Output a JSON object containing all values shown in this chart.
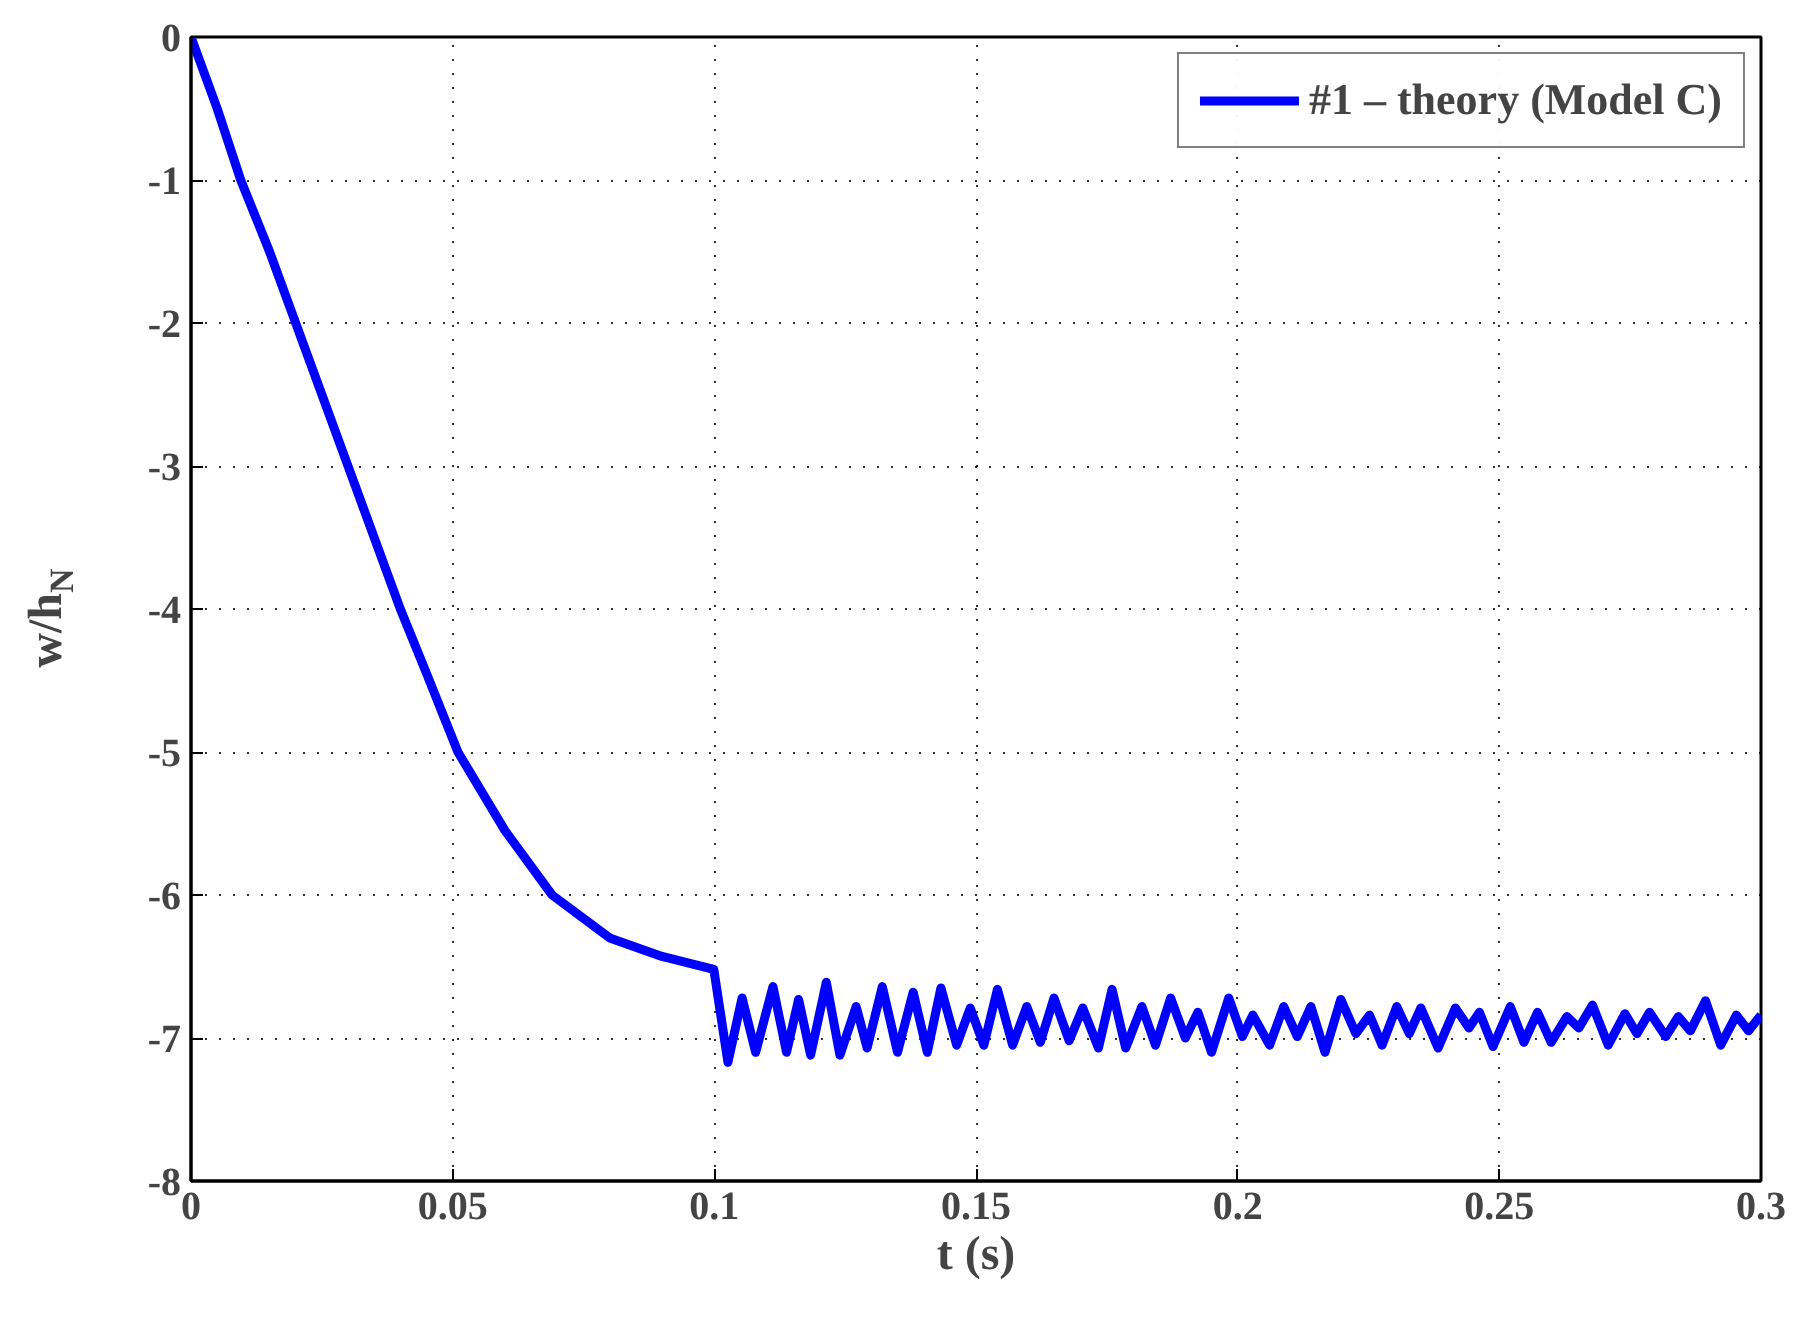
{
  "chart_data": {
    "type": "line",
    "xlabel": "t (s)",
    "ylabel": "w/h$_{N}$",
    "legend": "top right",
    "grid": true,
    "line_style": "solid",
    "marker": "none",
    "xlim": [
      0,
      0.3
    ],
    "ylim": [
      -8,
      0
    ],
    "xticks": [
      0,
      0.05,
      0.1,
      0.15,
      0.2,
      0.25,
      0.3
    ],
    "yticks": [
      -8,
      -7,
      -6,
      -5,
      -4,
      -3,
      -2,
      -1,
      0
    ],
    "series": [
      {
        "name": "#1 – theory (Model C)",
        "color": "#0000ff",
        "x": [
          0,
          0.005,
          0.0095,
          0.015,
          0.02,
          0.025,
          0.03,
          0.035,
          0.04,
          0.045,
          0.051,
          0.06,
          0.069,
          0.08,
          0.09,
          0.0999,
          0.1026,
          0.1053,
          0.1079,
          0.1112,
          0.1138,
          0.1161,
          0.1184,
          0.1214,
          0.124,
          0.1271,
          0.1292,
          0.1321,
          0.135,
          0.138,
          0.1407,
          0.1433,
          0.1463,
          0.1489,
          0.1515,
          0.1541,
          0.157,
          0.1597,
          0.1623,
          0.1649,
          0.1678,
          0.1704,
          0.1734,
          0.176,
          0.1786,
          0.1817,
          0.1843,
          0.1872,
          0.19,
          0.1924,
          0.195,
          0.1983,
          0.2009,
          0.2029,
          0.2061,
          0.2088,
          0.2114,
          0.214,
          0.2167,
          0.2197,
          0.2226,
          0.2252,
          0.2276,
          0.2304,
          0.2328,
          0.235,
          0.2383,
          0.2416,
          0.2442,
          0.2462,
          0.2488,
          0.2521,
          0.2547,
          0.2573,
          0.2599,
          0.2629,
          0.2652,
          0.2678,
          0.2708,
          0.274,
          0.2763,
          0.2787,
          0.2818,
          0.2842,
          0.2865,
          0.2894,
          0.2923,
          0.2953,
          0.2976,
          0.3
        ],
        "values": [
          0,
          -0.5,
          -1,
          -1.5,
          -2,
          -2.5,
          -3,
          -3.5,
          -4,
          -4.45,
          -5,
          -5.55,
          -6,
          -6.3,
          -6.43,
          -6.52,
          -7.17,
          -6.72,
          -7.1,
          -6.64,
          -7.1,
          -6.73,
          -7.12,
          -6.61,
          -7.12,
          -6.78,
          -7.07,
          -6.64,
          -7.1,
          -6.68,
          -7.1,
          -6.65,
          -7.05,
          -6.79,
          -7.05,
          -6.66,
          -7.05,
          -6.78,
          -7.03,
          -6.72,
          -7.02,
          -6.79,
          -7.07,
          -6.66,
          -7.07,
          -6.78,
          -7.05,
          -6.72,
          -7,
          -6.82,
          -7.1,
          -6.72,
          -6.99,
          -6.84,
          -7.05,
          -6.78,
          -6.99,
          -6.78,
          -7.1,
          -6.73,
          -6.97,
          -6.84,
          -7.05,
          -6.78,
          -6.97,
          -6.79,
          -7.07,
          -6.79,
          -6.93,
          -6.82,
          -7.06,
          -6.78,
          -7.03,
          -6.82,
          -7.03,
          -6.85,
          -6.93,
          -6.77,
          -7.05,
          -6.83,
          -6.97,
          -6.82,
          -6.99,
          -6.85,
          -6.95,
          -6.74,
          -7.05,
          -6.84,
          -6.95,
          -6.84
        ]
      }
    ]
  }
}
